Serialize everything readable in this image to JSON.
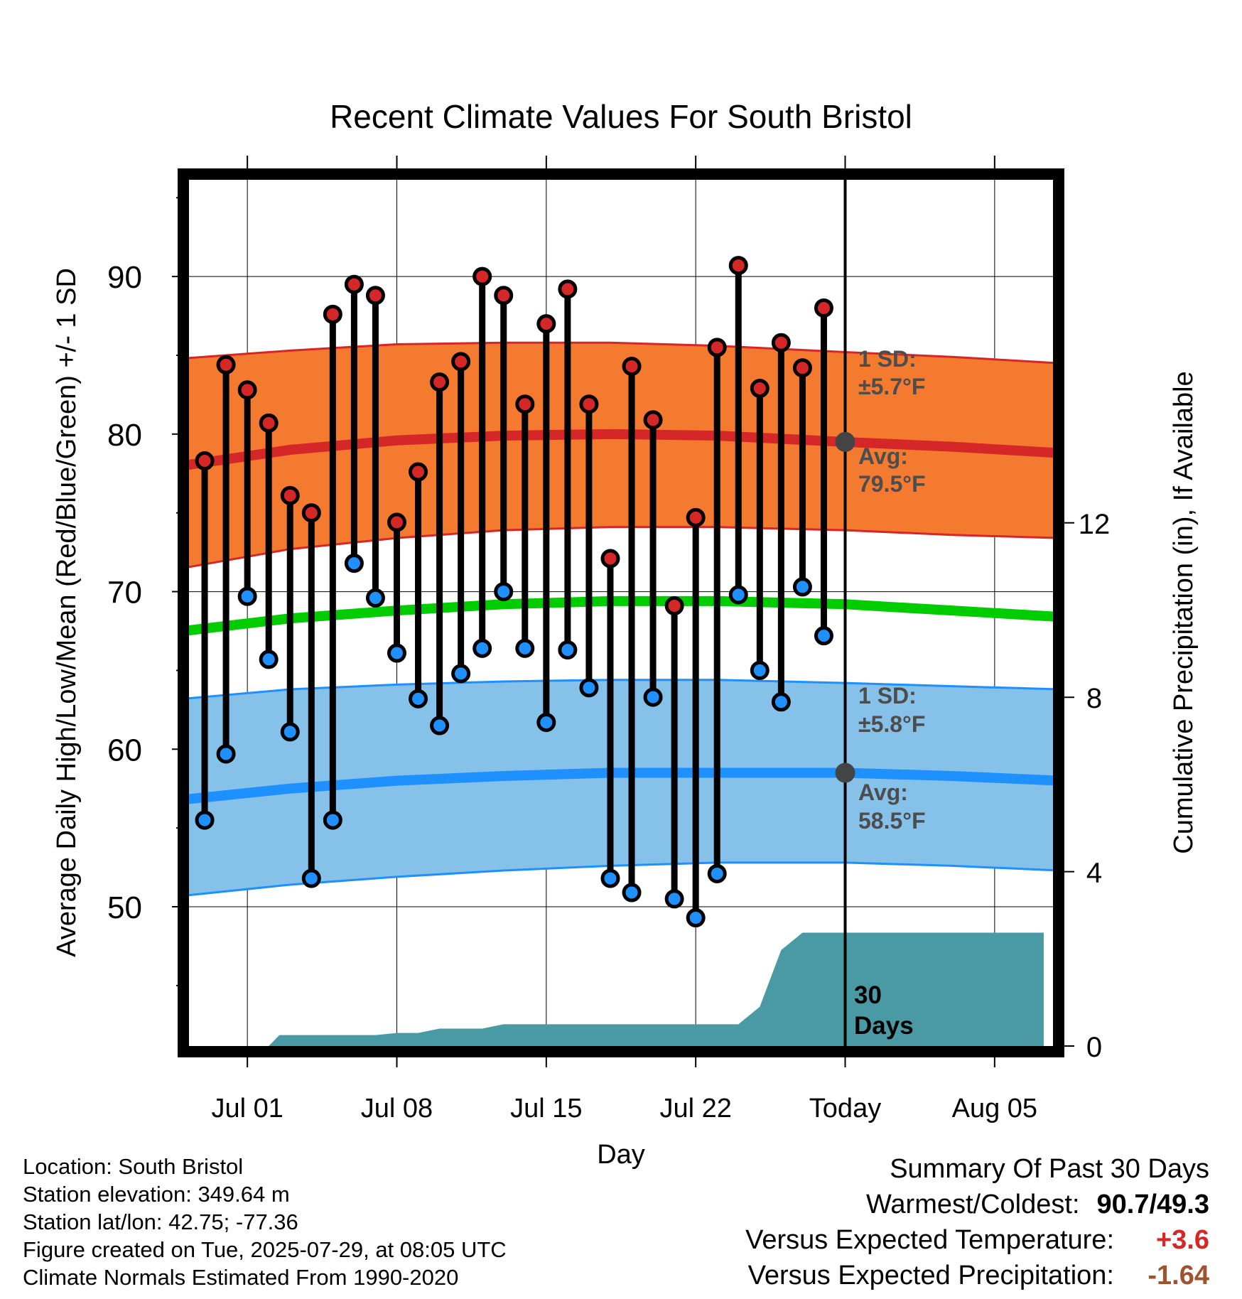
{
  "title": "Recent Climate Values For South Bristol",
  "chart_data": {
    "type": "line",
    "title": "Recent Climate Values For South Bristol",
    "xlabel": "Day",
    "ylabel": "Average Daily High/Low/Mean (Red/Blue/Green) +/- 1 SD",
    "y2label": "Cumulative Precipitation (in), If Available",
    "ylim": [
      40.8,
      96.5
    ],
    "y2lim": [
      0,
      20
    ],
    "y_ticks": [
      "50",
      "60",
      "70",
      "80",
      "90"
    ],
    "y2_ticks": [
      "0",
      "4",
      "8",
      "12"
    ],
    "x_ticks": [
      "Jul 01",
      "Jul 08",
      "Jul 15",
      "Jul 22",
      "Today",
      "Aug 05"
    ],
    "x_tick_days": [
      0,
      7,
      14,
      21,
      28,
      35
    ],
    "x_range_days": [
      -3,
      38
    ],
    "today_day": 28,
    "grid": true,
    "daily": {
      "days": [
        -2,
        -1,
        0,
        1,
        2,
        3,
        4,
        5,
        6,
        7,
        8,
        9,
        10,
        11,
        12,
        13,
        14,
        15,
        16,
        17,
        18,
        19,
        20,
        21,
        22,
        23,
        24,
        25,
        26,
        27
      ],
      "high": [
        78.3,
        84.4,
        82.8,
        80.7,
        76.1,
        75.0,
        87.6,
        89.5,
        88.8,
        74.4,
        77.6,
        83.3,
        84.6,
        90.0,
        88.8,
        81.9,
        87.0,
        89.2,
        81.9,
        72.1,
        84.3,
        80.9,
        69.1,
        74.7,
        85.5,
        90.7,
        82.9,
        85.8,
        84.2,
        88.0
      ],
      "low": [
        55.5,
        59.7,
        69.7,
        65.7,
        61.1,
        51.8,
        55.5,
        71.8,
        69.6,
        66.1,
        63.2,
        61.5,
        64.8,
        66.4,
        70.0,
        66.4,
        61.7,
        66.3,
        63.9,
        51.8,
        50.9,
        63.3,
        50.5,
        49.3,
        52.1,
        69.8,
        65.0,
        63.0,
        70.3,
        67.2
      ]
    },
    "normals": {
      "days": [
        -3,
        2,
        7,
        12,
        17,
        22,
        28,
        33,
        38
      ],
      "high_avg": [
        78.0,
        79.0,
        79.6,
        79.9,
        80.0,
        79.9,
        79.5,
        79.2,
        78.8
      ],
      "high_upper": [
        84.8,
        85.3,
        85.7,
        85.8,
        85.8,
        85.6,
        85.2,
        84.9,
        84.5
      ],
      "high_lower": [
        71.5,
        72.7,
        73.4,
        73.9,
        74.1,
        74.1,
        73.9,
        73.6,
        73.4
      ],
      "mean_avg": [
        67.5,
        68.3,
        68.8,
        69.2,
        69.4,
        69.4,
        69.2,
        68.8,
        68.4
      ],
      "low_avg": [
        56.8,
        57.5,
        58.0,
        58.3,
        58.5,
        58.5,
        58.5,
        58.3,
        58.0
      ],
      "low_upper": [
        63.2,
        63.8,
        64.1,
        64.3,
        64.4,
        64.4,
        64.2,
        64.0,
        63.8
      ],
      "low_lower": [
        50.7,
        51.4,
        51.9,
        52.3,
        52.6,
        52.8,
        52.8,
        52.6,
        52.3
      ]
    },
    "precip": {
      "days": [
        -3,
        1,
        1.5,
        6,
        7,
        8,
        9,
        11,
        12,
        12.5,
        23,
        24,
        25,
        25.5,
        26,
        37.3
      ],
      "values": [
        0,
        0,
        0.25,
        0.25,
        0.3,
        0.3,
        0.4,
        0.4,
        0.5,
        0.5,
        0.5,
        0.9,
        2.2,
        2.4,
        2.6,
        2.6
      ]
    },
    "annotations": {
      "high_sd_label": "1 SD:",
      "high_sd_value": "±5.7°F",
      "high_avg_label": "Avg:",
      "high_avg_value": "79.5°F",
      "low_sd_label": "1 SD:",
      "low_sd_value": "±5.8°F",
      "low_avg_label": "Avg:",
      "low_avg_value": "58.5°F",
      "days_line1": "30",
      "days_line2": "Days"
    },
    "colors": {
      "high_band": "#f47a30",
      "high_line": "#d62728",
      "mean_line": "#00cc00",
      "low_band": "#85c1e9",
      "low_line": "#1e90ff",
      "precip": "#4a9aa5",
      "high_dot": "#d62728",
      "low_dot": "#1e90ff",
      "annotation_text": "#4d4d4d"
    }
  },
  "footer": {
    "location": "Location: South Bristol",
    "elevation": "Station elevation: 349.64 m",
    "latlon": "Station lat/lon: 42.75; -77.36",
    "created": "Figure created on Tue, 2025-07-29, at 08:05 UTC",
    "normals": "Climate Normals Estimated From 1990-2020"
  },
  "summary": {
    "heading": "Summary Of Past 30 Days",
    "warm_label": "Warmest/Coldest:",
    "warm_value": "90.7/49.3",
    "temp_label": "Versus Expected Temperature:",
    "temp_value": "+3.6",
    "precip_label": "Versus Expected Precipitation:",
    "precip_value": "-1.64"
  }
}
